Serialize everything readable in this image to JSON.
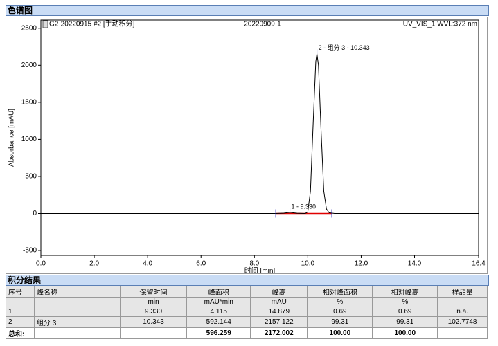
{
  "sections": [
    "色谱图",
    "积分结果"
  ],
  "chart_data": {
    "type": "line",
    "labels": [
      "G2-20220915 #2 [手动积分]",
      "20220909-1",
      "UV_VIS_1 WVL:372 nm"
    ],
    "x_label": "时间 [min]",
    "y_label": "Absorbance [mAU]",
    "x": [
      0,
      8.8,
      9.1,
      9.33,
      9.6,
      9.9,
      10.0,
      10.1,
      10.2,
      10.3,
      10.343,
      10.4,
      10.5,
      10.6,
      10.7,
      10.8,
      11.0,
      16.4
    ],
    "series": [
      {
        "color": "#000000",
        "values": [
          0,
          0,
          5,
          15,
          3,
          0,
          20,
          300,
          1200,
          2050,
          2157,
          2000,
          1100,
          300,
          60,
          10,
          0,
          0
        ]
      }
    ],
    "annotations": [
      {
        "text": "1 - 9.330",
        "x": 9.33,
        "y": 14.879
      },
      {
        "text": "2 - 组分 3 - 10.343",
        "x": 10.343,
        "y": 2157.122
      }
    ],
    "integration_limits": [
      8.8,
      9.9,
      10.9
    ],
    "xlim": [
      0,
      16.4
    ],
    "ylim": [
      -565,
      2610
    ],
    "xticks": [
      {
        "value": 0,
        "label": "0.0"
      },
      {
        "value": 2,
        "label": "2.0"
      },
      {
        "value": 4,
        "label": "4.0"
      },
      {
        "value": 6,
        "label": "6.0"
      },
      {
        "value": 8,
        "label": "8.0"
      },
      {
        "value": 10,
        "label": "10.0"
      },
      {
        "value": 12,
        "label": "12.0"
      },
      {
        "value": 14,
        "label": "14.0"
      },
      16.4
    ],
    "yticks": [
      -500,
      0,
      500,
      1000,
      1500,
      2000,
      2500
    ]
  },
  "table": {
    "header": [
      [
        "序号",
        "峰名称",
        "保留时间",
        "峰面积",
        "峰高",
        "相对峰面积",
        "相对峰高",
        "样品量"
      ],
      [
        null,
        null,
        "min",
        "mAU*min",
        "mAU",
        "%",
        "%",
        null
      ]
    ],
    "rows": [
      [
        "1",
        null,
        "9.330",
        "4.115",
        "14.879",
        "0.69",
        "0.69",
        "n.a."
      ],
      [
        "2",
        "组分 3",
        "10.343",
        "592.144",
        "2157.122",
        "99.31",
        "99.31",
        "102.7748"
      ]
    ],
    "total": [
      "总和:",
      null,
      null,
      "596.259",
      "2172.002",
      "100.00",
      "100.00",
      null
    ]
  }
}
